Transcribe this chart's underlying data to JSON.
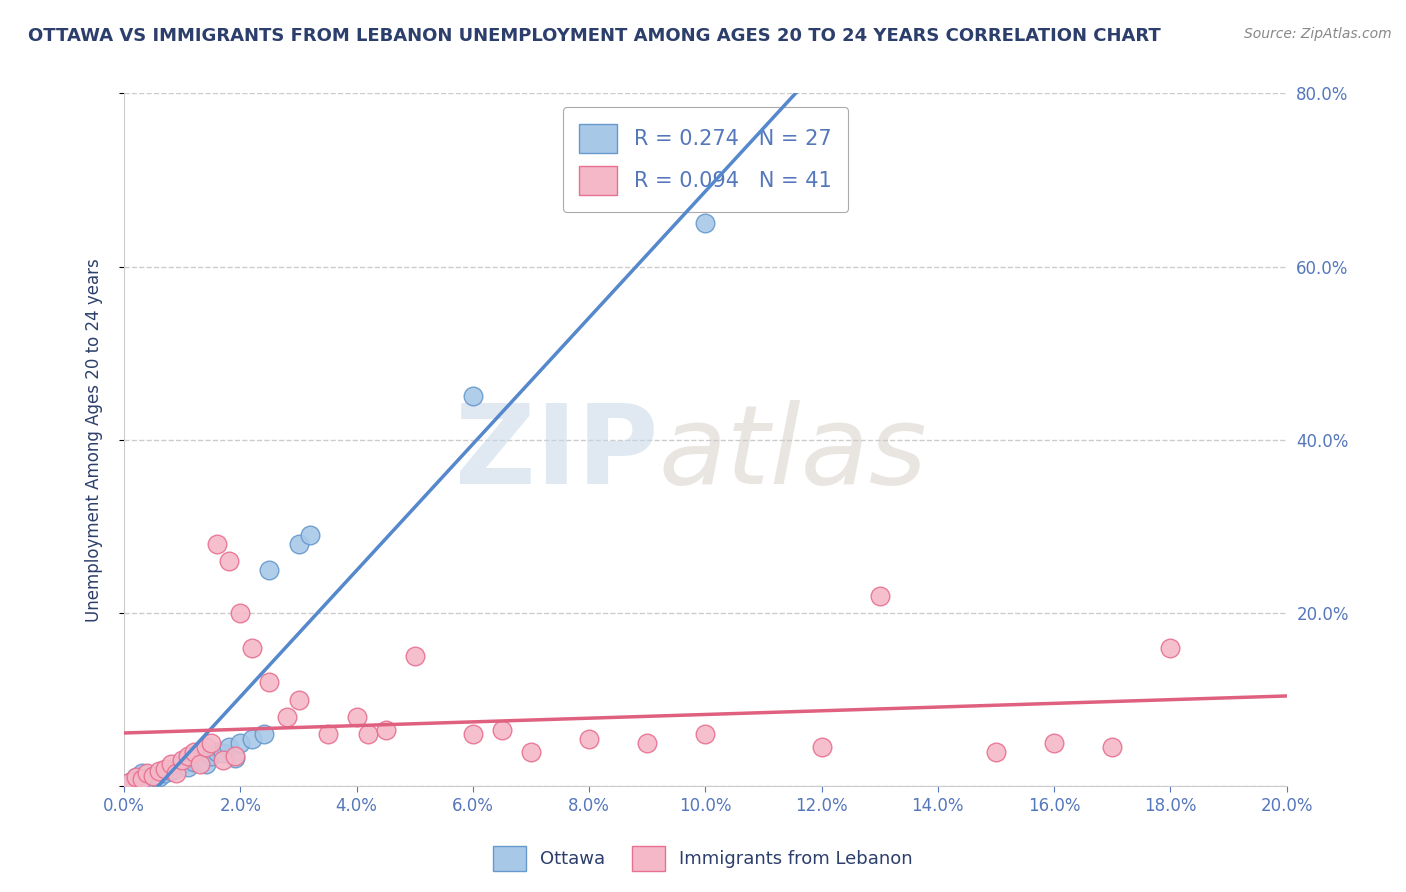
{
  "title": "OTTAWA VS IMMIGRANTS FROM LEBANON UNEMPLOYMENT AMONG AGES 20 TO 24 YEARS CORRELATION CHART",
  "source": "Source: ZipAtlas.com",
  "ylabel": "Unemployment Among Ages 20 to 24 years",
  "xlim": [
    0.0,
    0.2
  ],
  "ylim": [
    0.0,
    0.8
  ],
  "xticks": [
    0.0,
    0.02,
    0.04,
    0.06,
    0.08,
    0.1,
    0.12,
    0.14,
    0.16,
    0.18,
    0.2
  ],
  "yticks": [
    0.0,
    0.2,
    0.4,
    0.6,
    0.8
  ],
  "ottawa_color": "#a8c8e8",
  "ottawa_edge_color": "#6699cc",
  "lebanon_color": "#f4b8c8",
  "lebanon_edge_color": "#e87090",
  "ottawa_line_color": "#5588cc",
  "lebanon_line_color": "#e06080",
  "gray_dashed_color": "#aaaaaa",
  "legend_r_ottawa": "R = 0.274",
  "legend_n_ottawa": "N = 27",
  "legend_r_lebanon": "R = 0.094",
  "legend_n_lebanon": "N = 41",
  "ottawa_x": [
    0.001,
    0.002,
    0.003,
    0.004,
    0.005,
    0.006,
    0.007,
    0.008,
    0.009,
    0.01,
    0.011,
    0.012,
    0.013,
    0.014,
    0.015,
    0.016,
    0.017,
    0.018,
    0.019,
    0.02,
    0.022,
    0.024,
    0.025,
    0.03,
    0.032,
    0.06,
    0.1
  ],
  "ottawa_y": [
    0.005,
    0.01,
    0.015,
    0.008,
    0.012,
    0.01,
    0.015,
    0.018,
    0.02,
    0.025,
    0.022,
    0.028,
    0.03,
    0.025,
    0.035,
    0.04,
    0.038,
    0.045,
    0.032,
    0.05,
    0.055,
    0.06,
    0.25,
    0.28,
    0.29,
    0.45,
    0.65
  ],
  "lebanon_x": [
    0.001,
    0.002,
    0.003,
    0.004,
    0.005,
    0.006,
    0.007,
    0.008,
    0.009,
    0.01,
    0.011,
    0.012,
    0.013,
    0.014,
    0.015,
    0.016,
    0.017,
    0.018,
    0.019,
    0.02,
    0.022,
    0.025,
    0.028,
    0.03,
    0.035,
    0.04,
    0.042,
    0.045,
    0.05,
    0.06,
    0.065,
    0.07,
    0.08,
    0.09,
    0.1,
    0.12,
    0.13,
    0.15,
    0.16,
    0.17,
    0.18
  ],
  "lebanon_y": [
    0.005,
    0.01,
    0.008,
    0.015,
    0.012,
    0.018,
    0.02,
    0.025,
    0.015,
    0.03,
    0.035,
    0.04,
    0.025,
    0.045,
    0.05,
    0.28,
    0.03,
    0.26,
    0.035,
    0.2,
    0.16,
    0.12,
    0.08,
    0.1,
    0.06,
    0.08,
    0.06,
    0.065,
    0.15,
    0.06,
    0.065,
    0.04,
    0.055,
    0.05,
    0.06,
    0.045,
    0.22,
    0.04,
    0.05,
    0.045,
    0.16
  ],
  "watermark_zip": "ZIP",
  "watermark_atlas": "atlas",
  "background_color": "#ffffff",
  "grid_color": "#cccccc",
  "title_color": "#2c3e6b",
  "axis_label_color": "#5577bb",
  "tick_color": "#5577bb"
}
